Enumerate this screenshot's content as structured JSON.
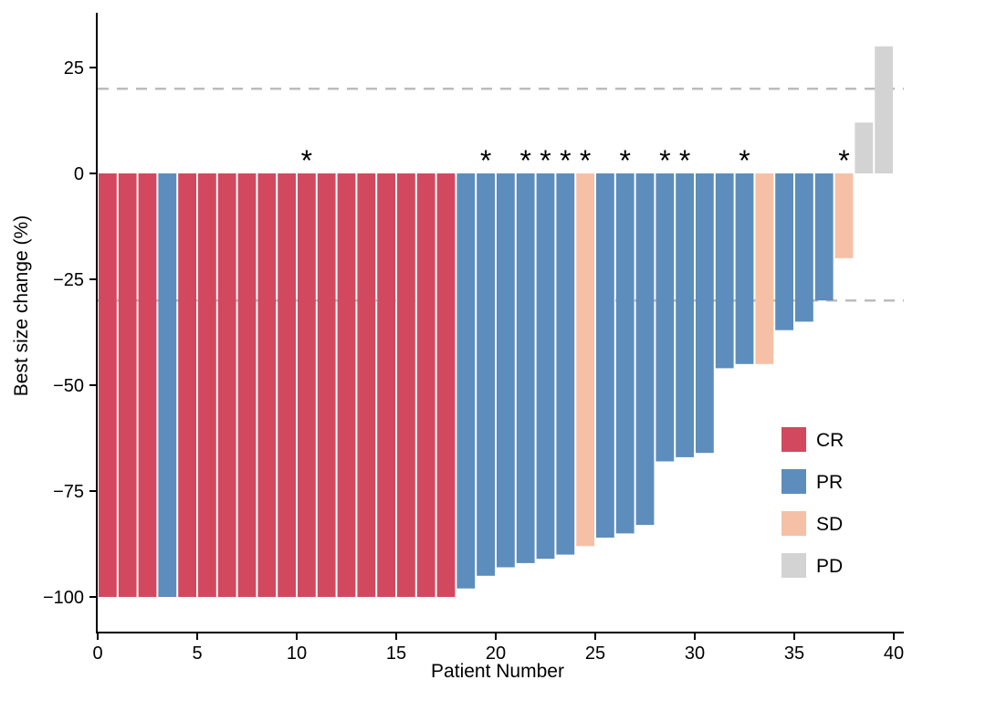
{
  "chart_data": {
    "type": "bar",
    "subtype": "waterfall",
    "title": "",
    "xlabel": "Patient Number",
    "ylabel": "Best size change (%)",
    "xlim": [
      0,
      40.5
    ],
    "ylim": [
      -108,
      38
    ],
    "x_ticks": [
      0,
      5,
      10,
      15,
      20,
      25,
      30,
      35,
      40
    ],
    "y_ticks": [
      25,
      0,
      -25,
      -50,
      -75,
      -100
    ],
    "y_tick_labels": [
      "25",
      "0",
      "−25",
      "−50",
      "−75",
      "−100"
    ],
    "reference_lines": [
      20,
      -30
    ],
    "grid": false,
    "legend_position": "inside bottom-right",
    "legend": [
      {
        "label": "CR",
        "color": "#d2495f"
      },
      {
        "label": "PR",
        "color": "#5c8dbc"
      },
      {
        "label": "SD",
        "color": "#f6c0a6"
      },
      {
        "label": "PD",
        "color": "#d3d3d3"
      }
    ],
    "patients": [
      1,
      2,
      3,
      4,
      5,
      6,
      7,
      8,
      9,
      10,
      11,
      12,
      13,
      14,
      15,
      16,
      17,
      18,
      19,
      20,
      21,
      22,
      23,
      24,
      25,
      26,
      27,
      28,
      29,
      30,
      31,
      32,
      33,
      34,
      35,
      36,
      37,
      38,
      39,
      40
    ],
    "values": [
      -100,
      -100,
      -100,
      -100,
      -100,
      -100,
      -100,
      -100,
      -100,
      -100,
      -100,
      -100,
      -100,
      -100,
      -100,
      -100,
      -100,
      -100,
      -98,
      -95,
      -93,
      -92,
      -91,
      -90,
      -88,
      -86,
      -85,
      -83,
      -68,
      -67,
      -66,
      -46,
      -45,
      -45,
      -37,
      -35,
      -30,
      -20,
      12,
      30
    ],
    "responses": [
      "CR",
      "CR",
      "CR",
      "PR",
      "CR",
      "CR",
      "CR",
      "CR",
      "CR",
      "CR",
      "CR",
      "CR",
      "CR",
      "CR",
      "CR",
      "CR",
      "CR",
      "CR",
      "PR",
      "PR",
      "PR",
      "PR",
      "PR",
      "PR",
      "SD",
      "PR",
      "PR",
      "PR",
      "PR",
      "PR",
      "PR",
      "PR",
      "PR",
      "SD",
      "PR",
      "PR",
      "PR",
      "SD",
      "PD",
      "PD"
    ],
    "asterisk_patients": [
      11,
      20,
      22,
      23,
      24,
      25,
      27,
      29,
      30,
      33,
      38
    ],
    "asterisk_marker": "*"
  }
}
